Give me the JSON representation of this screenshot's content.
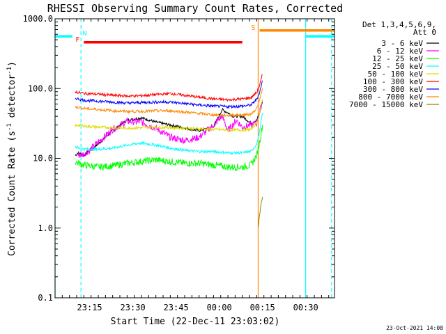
{
  "chart_data": {
    "type": "line",
    "title": "RHESSI Observing Summary Count Rates, Corrected",
    "xlabel": "Start Time (22-Dec-11 23:03:02)",
    "ylabel": "Corrected Count Rate (s⁻¹ detector⁻¹)",
    "ylabel_main": "Corrected Count Rate (s",
    "ylabel_sup1": "-1",
    "ylabel_mid": " detector",
    "ylabel_sup2": "-1",
    "ylabel_end": ")",
    "y_scale": "log",
    "ylim": [
      0.1,
      1000
    ],
    "xlim_minutes": [
      0,
      97
    ],
    "x_ticks": [
      {
        "t": 12,
        "label": "23:15"
      },
      {
        "t": 27,
        "label": "23:30"
      },
      {
        "t": 42,
        "label": "23:45"
      },
      {
        "t": 57,
        "label": "00:00"
      },
      {
        "t": 72,
        "label": "00:15"
      },
      {
        "t": 87,
        "label": "00:30"
      }
    ],
    "y_ticks": [
      {
        "v": 0.1,
        "label": "0.1"
      },
      {
        "v": 1,
        "label": "1.0"
      },
      {
        "v": 10,
        "label": "10.0"
      },
      {
        "v": 100,
        "label": "100.0"
      },
      {
        "v": 1000,
        "label": "1000.0"
      }
    ],
    "legend_header": [
      "Det 1,3,4,5,6,9,",
      "Att 0"
    ],
    "legend_position": "right",
    "series": [
      {
        "name": "3 - 6 keV",
        "color": "#000000",
        "x": [
          7,
          8,
          10,
          12,
          15,
          20,
          25,
          30,
          35,
          40,
          45,
          50,
          55,
          58,
          62,
          65,
          68,
          70,
          71,
          72
        ],
        "y": [
          11,
          12,
          11,
          13,
          16,
          25,
          35,
          38,
          33,
          30,
          27,
          25,
          28,
          50,
          40,
          40,
          32,
          35,
          45,
          65
        ]
      },
      {
        "name": "6 - 12 keV",
        "color": "#ff00ff",
        "x": [
          8,
          10,
          12,
          15,
          20,
          25,
          30,
          35,
          40,
          45,
          50,
          55,
          58,
          60,
          63,
          65,
          68,
          70,
          71,
          72
        ],
        "y": [
          11,
          11.5,
          13,
          17,
          26,
          34,
          33,
          27,
          20,
          18,
          20,
          30,
          40,
          25,
          35,
          28,
          30,
          32,
          45,
          70
        ]
      },
      {
        "name": "12 - 25 keV",
        "color": "#00ff00",
        "x": [
          7,
          8,
          10,
          15,
          20,
          25,
          30,
          35,
          40,
          45,
          50,
          55,
          60,
          65,
          68,
          70,
          71,
          72
        ],
        "y": [
          9,
          8.5,
          8,
          7.5,
          7.8,
          8.5,
          9,
          9.5,
          9,
          8.5,
          8.5,
          8,
          7.5,
          7.5,
          8,
          11,
          17,
          30
        ]
      },
      {
        "name": "25 - 50 keV",
        "color": "#00ffff",
        "x": [
          7,
          8,
          10,
          15,
          20,
          25,
          30,
          35,
          40,
          45,
          50,
          55,
          60,
          65,
          68,
          70,
          71,
          72
        ],
        "y": [
          15,
          14,
          13.5,
          13.5,
          14,
          15.5,
          16.5,
          15.5,
          14,
          13,
          12.5,
          12.5,
          12,
          12,
          12.5,
          16,
          24,
          45
        ]
      },
      {
        "name": "50 - 100 keV",
        "color": "#dddd00",
        "x": [
          7,
          8,
          10,
          15,
          20,
          25,
          30,
          35,
          40,
          45,
          50,
          55,
          60,
          65,
          68,
          70,
          71,
          72
        ],
        "y": [
          29,
          30,
          29,
          28,
          27.5,
          27,
          27.5,
          28,
          27.5,
          27,
          26.5,
          26,
          25.5,
          25.5,
          26,
          32,
          45,
          70
        ]
      },
      {
        "name": "100 - 300 keV",
        "color": "#ff0000",
        "x": [
          7,
          8,
          10,
          15,
          20,
          25,
          30,
          35,
          40,
          45,
          50,
          55,
          60,
          65,
          68,
          70,
          71,
          72
        ],
        "y": [
          90,
          88,
          85,
          83,
          80,
          78,
          79,
          82,
          85,
          80,
          75,
          71,
          69,
          71,
          74,
          88,
          110,
          160
        ]
      },
      {
        "name": "300 - 800 keV",
        "color": "#0000ff",
        "x": [
          7,
          8,
          10,
          15,
          20,
          25,
          30,
          35,
          40,
          45,
          50,
          55,
          60,
          65,
          68,
          70,
          71,
          72
        ],
        "y": [
          73,
          71,
          68,
          66,
          64,
          62,
          63,
          64,
          64,
          61,
          58,
          56,
          55,
          56,
          58,
          70,
          88,
          130
        ]
      },
      {
        "name": "800 - 7000 keV",
        "color": "#ff8800",
        "x": [
          7,
          8,
          10,
          15,
          20,
          25,
          30,
          35,
          40,
          45,
          50,
          55,
          60,
          65,
          68,
          70,
          71,
          72
        ],
        "y": [
          55,
          54,
          52,
          50,
          48,
          47,
          47,
          48,
          48,
          46,
          44,
          42,
          41,
          42,
          43,
          52,
          68,
          100
        ]
      },
      {
        "name": "7000 - 15000 keV",
        "color": "#888800",
        "x": [
          70.5,
          71,
          71.5,
          72
        ],
        "y": [
          1.0,
          1.5,
          2.2,
          2.8
        ]
      }
    ],
    "flag_bars": [
      {
        "label": "N",
        "color": "#00ffff",
        "segments": [
          [
            0,
            6
          ],
          [
            87,
            97
          ]
        ],
        "value": 560
      },
      {
        "label": "S",
        "color": "#ff8800",
        "segments": [
          [
            71,
            97
          ]
        ],
        "value": 680
      },
      {
        "label": "F",
        "color": "#ff0000",
        "segments": [
          [
            10,
            65
          ]
        ],
        "value": 460
      }
    ],
    "vertical_markers": [
      {
        "t": 0,
        "color": "#00ffff",
        "style": "solid"
      },
      {
        "t": 9,
        "color": "#00ffff",
        "style": "dashed"
      },
      {
        "t": 70.5,
        "color": "#ff8800",
        "style": "solid"
      },
      {
        "t": 87,
        "color": "#00ffff",
        "style": "solid"
      },
      {
        "t": 96,
        "color": "#00ffff",
        "style": "dashed"
      }
    ],
    "footer_date": "23-Oct-2021 14:08"
  }
}
